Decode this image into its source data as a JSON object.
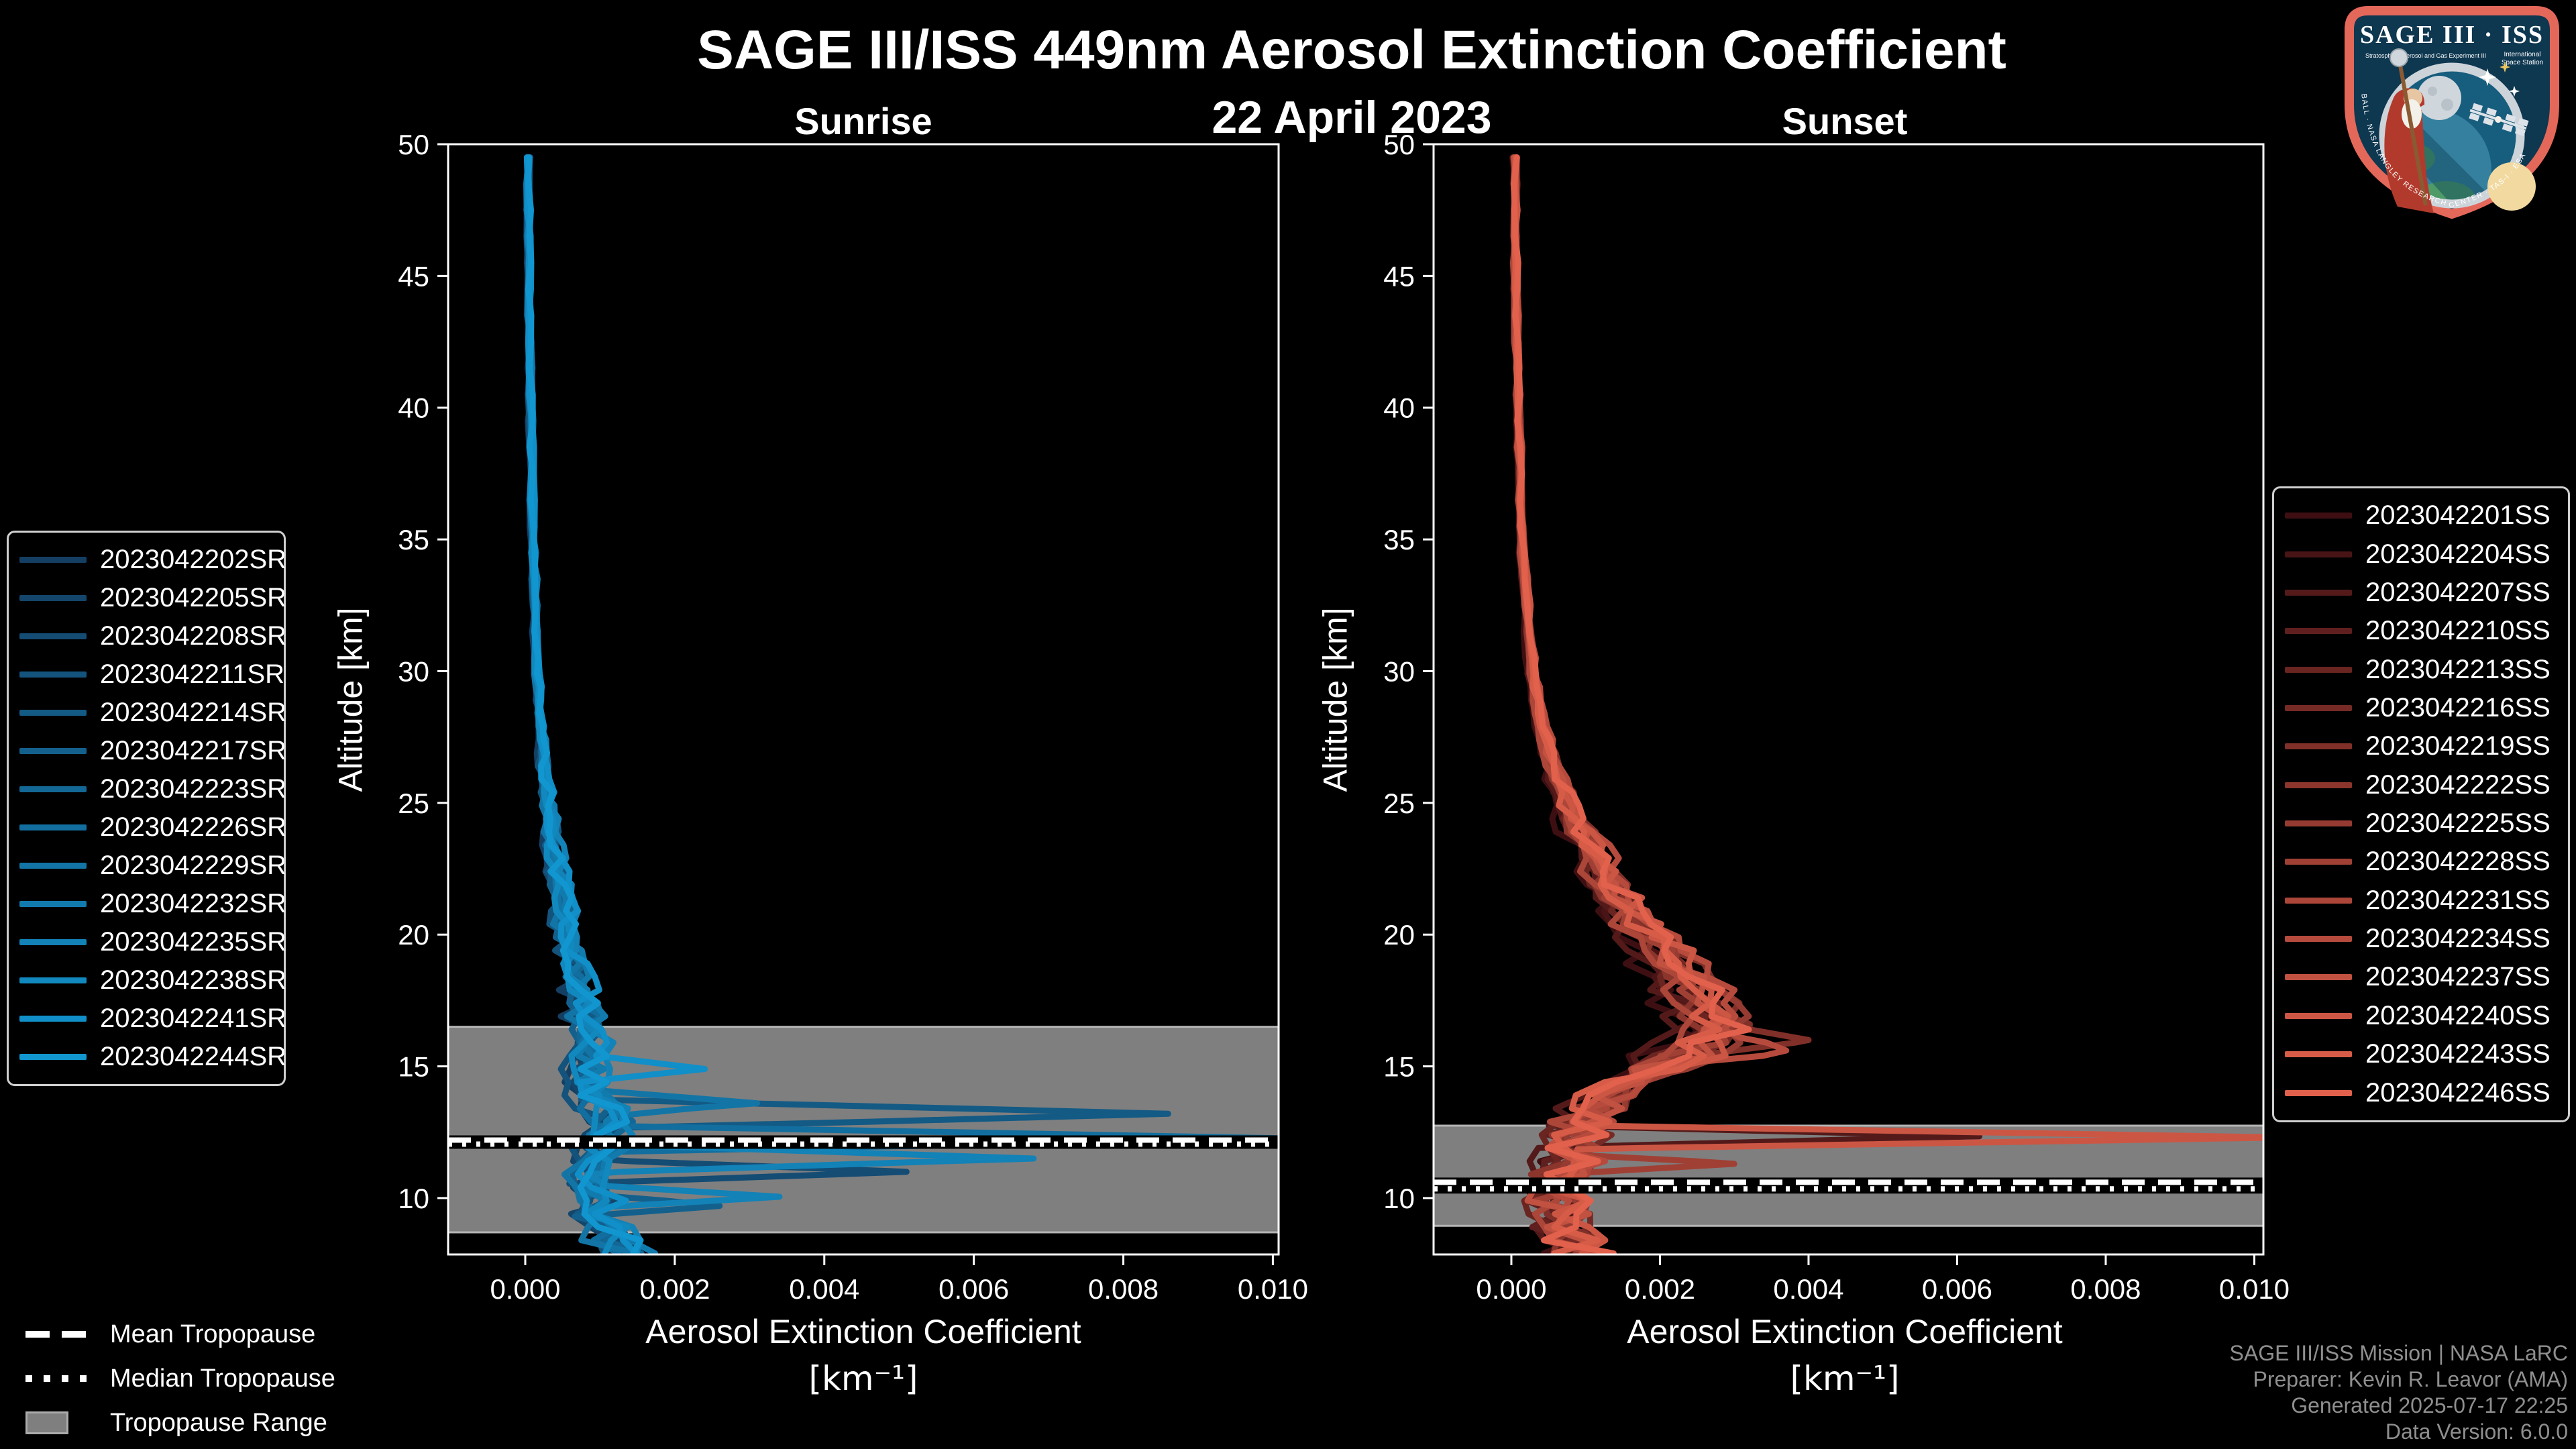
{
  "title": "SAGE III/ISS 449nm Aerosol Extinction Coefficient",
  "subtitle": "22 April 2023",
  "attribution": {
    "line1": "SAGE III/ISS Mission | NASA LaRC",
    "line2": "Preparer: Kevin R. Leavor (AMA)",
    "line3": "Generated 2025-07-17 22:25",
    "line4": "Data Version: 6.0.0"
  },
  "tropopause_legend": {
    "mean": "Mean Tropopause",
    "median": "Median Tropopause",
    "range": "Tropopause Range"
  },
  "logo": {
    "title": "SAGE III · ISS",
    "sub_left": "Stratospheric Aerosol and Gas Experiment III",
    "sub_right_1": "International",
    "sub_right_2": "Space Station",
    "border_text": "BALL · NASA LANGLEY RESEARCH CENTER · TAS-I · ESA"
  },
  "chart_data": [
    {
      "type": "line",
      "title": "Sunrise",
      "xlabel": "Aerosol Extinction Coefficient",
      "xunit": "[km⁻¹]",
      "ylabel": "Altitude [km]",
      "xlim": [
        -0.001032,
        0.010077
      ],
      "ylim": [
        7.86,
        50
      ],
      "xticks": {
        "values": [
          0.0,
          0.002,
          0.004,
          0.006,
          0.008,
          0.01
        ],
        "labels": [
          "0.000",
          "0.002",
          "0.004",
          "0.006",
          "0.008",
          "0.010"
        ]
      },
      "yticks": [
        10,
        15,
        20,
        25,
        30,
        35,
        40,
        45,
        50
      ],
      "grid": false,
      "legend_position": "outside-left",
      "line_color_start": "#143f63",
      "line_color_end": "#1196d0",
      "band_color": "#7f7f7f",
      "band_edge_color": "#b5b5b5",
      "tropopause": {
        "mean_km": 12.2,
        "median_km": 12.05,
        "range_km": [
          8.7,
          16.5
        ]
      },
      "base_profile": [
        [
          50,
          4e-05
        ],
        [
          45,
          5e-05
        ],
        [
          40,
          7e-05
        ],
        [
          35,
          0.0001
        ],
        [
          30,
          0.00016
        ],
        [
          28,
          0.0002
        ],
        [
          26,
          0.00026
        ],
        [
          24,
          0.00034
        ],
        [
          22,
          0.00044
        ],
        [
          21,
          0.0005
        ],
        [
          20,
          0.00056
        ],
        [
          19,
          0.00063
        ],
        [
          18,
          0.00072
        ],
        [
          17,
          0.0008
        ],
        [
          16.5,
          0.00084
        ],
        [
          16,
          0.00086
        ],
        [
          15.5,
          0.00084
        ],
        [
          15,
          0.0008
        ],
        [
          14.5,
          0.00082
        ],
        [
          14,
          0.00088
        ],
        [
          13.5,
          0.00096
        ],
        [
          13,
          0.00104
        ],
        [
          12.5,
          0.0011
        ],
        [
          12,
          0.00104
        ],
        [
          11.5,
          0.00094
        ],
        [
          11,
          0.00086
        ],
        [
          10.5,
          0.00092
        ],
        [
          10,
          0.001
        ],
        [
          9.5,
          0.00094
        ],
        [
          9,
          0.00104
        ],
        [
          8.5,
          0.00116
        ],
        [
          8,
          0.0013
        ]
      ],
      "jitter": {
        "hi_alt": 28,
        "amp_hi": 3e-05,
        "amp_lo": 0.0002,
        "cap": 1.8
      },
      "series": [
        {
          "label": "2023042202SR",
          "scale": 0.85,
          "seed": 3,
          "spikes": []
        },
        {
          "label": "2023042205SR",
          "scale": 0.92,
          "seed": 7,
          "spikes": []
        },
        {
          "label": "2023042208SR",
          "scale": 1.0,
          "seed": 11,
          "spikes": [
            {
              "alt": 11.0,
              "value": 0.0051,
              "width": 0.45
            }
          ]
        },
        {
          "label": "2023042211SR",
          "scale": 0.88,
          "seed": 15,
          "spikes": []
        },
        {
          "label": "2023042214SR",
          "scale": 1.05,
          "seed": 19,
          "spikes": [
            {
              "alt": 13.2,
              "value": 0.0086,
              "width": 0.55
            }
          ]
        },
        {
          "label": "2023042217SR",
          "scale": 0.95,
          "seed": 23,
          "spikes": [
            {
              "alt": 9.7,
              "value": 0.0026,
              "width": 0.4
            }
          ]
        },
        {
          "label": "2023042223SR",
          "scale": 1.1,
          "seed": 27,
          "spikes": []
        },
        {
          "label": "2023042226SR",
          "scale": 1.02,
          "seed": 31,
          "spikes": [
            {
              "alt": 12.25,
              "value": 0.0105,
              "width": 0.5
            }
          ]
        },
        {
          "label": "2023042229SR",
          "scale": 0.9,
          "seed": 35,
          "spikes": [
            {
              "alt": 13.6,
              "value": 0.0031,
              "width": 0.5
            }
          ]
        },
        {
          "label": "2023042232SR",
          "scale": 1.08,
          "seed": 39,
          "spikes": []
        },
        {
          "label": "2023042235SR",
          "scale": 1.15,
          "seed": 43,
          "spikes": [
            {
              "alt": 11.5,
              "value": 0.0068,
              "width": 0.5
            },
            {
              "alt": 10.05,
              "value": 0.0034,
              "width": 0.4
            }
          ]
        },
        {
          "label": "2023042238SR",
          "scale": 0.97,
          "seed": 47,
          "spikes": []
        },
        {
          "label": "2023042241SR",
          "scale": 1.12,
          "seed": 51,
          "spikes": [
            {
              "alt": 14.9,
              "value": 0.0024,
              "width": 0.5
            }
          ]
        },
        {
          "label": "2023042244SR",
          "scale": 1.05,
          "seed": 55,
          "spikes": []
        }
      ]
    },
    {
      "type": "line",
      "title": "Sunset",
      "xlabel": "Aerosol Extinction Coefficient",
      "xunit": "[km⁻¹]",
      "ylabel": "Altitude [km]",
      "xlim": [
        -0.001047,
        0.010122
      ],
      "ylim": [
        7.86,
        50
      ],
      "xticks": {
        "values": [
          0.0,
          0.002,
          0.004,
          0.006,
          0.008,
          0.01
        ],
        "labels": [
          "0.000",
          "0.002",
          "0.004",
          "0.006",
          "0.008",
          "0.010"
        ]
      },
      "yticks": [
        10,
        15,
        20,
        25,
        30,
        35,
        40,
        45,
        50
      ],
      "grid": false,
      "legend_position": "outside-right",
      "line_color_start": "#3e0f12",
      "line_color_end": "#e2614c",
      "band_color": "#7f7f7f",
      "band_edge_color": "#b5b5b5",
      "tropopause": {
        "mean_km": 10.6,
        "median_km": 10.35,
        "range_km": [
          8.95,
          12.75
        ]
      },
      "base_profile": [
        [
          50,
          5e-05
        ],
        [
          45,
          6e-05
        ],
        [
          40,
          9e-05
        ],
        [
          35,
          0.00014
        ],
        [
          30,
          0.00028
        ],
        [
          28,
          0.0004
        ],
        [
          26,
          0.0006
        ],
        [
          24,
          0.0009
        ],
        [
          22,
          0.0013
        ],
        [
          21,
          0.00155
        ],
        [
          20,
          0.00185
        ],
        [
          19,
          0.00215
        ],
        [
          18,
          0.00245
        ],
        [
          17.5,
          0.00258
        ],
        [
          17,
          0.00268
        ],
        [
          16.5,
          0.00274
        ],
        [
          16,
          0.00262
        ],
        [
          15.5,
          0.0024
        ],
        [
          15,
          0.00205
        ],
        [
          14.5,
          0.00165
        ],
        [
          14,
          0.00132
        ],
        [
          13.5,
          0.00112
        ],
        [
          13,
          0.001
        ],
        [
          12.5,
          0.00091
        ],
        [
          12,
          0.00083
        ],
        [
          11.5,
          0.00079
        ],
        [
          11,
          0.00073
        ],
        [
          10.5,
          0.0007
        ],
        [
          10,
          0.00064
        ],
        [
          9.5,
          0.00062
        ],
        [
          9,
          0.00068
        ],
        [
          8.5,
          0.00078
        ],
        [
          8,
          0.0009
        ]
      ],
      "jitter": {
        "hi_alt": 28,
        "amp_hi": 3e-05,
        "amp_lo": 0.0003,
        "cap": 1.5
      },
      "series": [
        {
          "label": "2023042201SS",
          "scale": 0.8,
          "seed": 2,
          "spikes": []
        },
        {
          "label": "2023042204SS",
          "scale": 0.9,
          "seed": 6,
          "spikes": []
        },
        {
          "label": "2023042207SS",
          "scale": 0.85,
          "seed": 10,
          "spikes": [
            {
              "alt": 12.35,
              "value": 0.0063,
              "width": 0.4
            }
          ]
        },
        {
          "label": "2023042210SS",
          "scale": 1.0,
          "seed": 14,
          "spikes": []
        },
        {
          "label": "2023042213SS",
          "scale": 0.92,
          "seed": 18,
          "spikes": []
        },
        {
          "label": "2023042216SS",
          "scale": 1.05,
          "seed": 22,
          "spikes": []
        },
        {
          "label": "2023042219SS",
          "scale": 1.12,
          "seed": 26,
          "spikes": [
            {
              "alt": 16.0,
              "value": 0.004,
              "width": 0.6
            }
          ]
        },
        {
          "label": "2023042222SS",
          "scale": 0.95,
          "seed": 30,
          "spikes": []
        },
        {
          "label": "2023042225SS",
          "scale": 1.08,
          "seed": 34,
          "spikes": []
        },
        {
          "label": "2023042228SS",
          "scale": 1.0,
          "seed": 38,
          "spikes": [
            {
              "alt": 11.3,
              "value": 0.003,
              "width": 0.35
            }
          ]
        },
        {
          "label": "2023042231SS",
          "scale": 0.88,
          "seed": 42,
          "spikes": []
        },
        {
          "label": "2023042234SS",
          "scale": 1.15,
          "seed": 46,
          "spikes": [
            {
              "alt": 15.6,
              "value": 0.0037,
              "width": 0.5
            }
          ]
        },
        {
          "label": "2023042237SS",
          "scale": 1.02,
          "seed": 50,
          "spikes": []
        },
        {
          "label": "2023042240SS",
          "scale": 1.1,
          "seed": 54,
          "spikes": [
            {
              "alt": 12.3,
              "value": 0.0104,
              "width": 0.45
            }
          ]
        },
        {
          "label": "2023042243SS",
          "scale": 0.98,
          "seed": 58,
          "spikes": []
        },
        {
          "label": "2023042246SS",
          "scale": 1.06,
          "seed": 62,
          "spikes": []
        }
      ]
    }
  ]
}
